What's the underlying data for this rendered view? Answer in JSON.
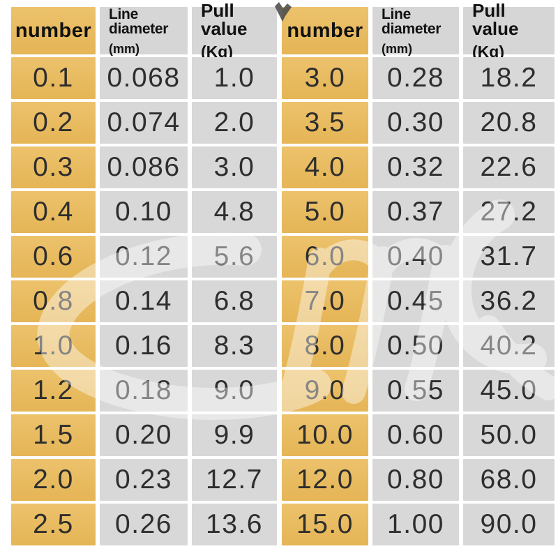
{
  "colors": {
    "background": "#ffffff",
    "gold_top": "#ecc26c",
    "gold_bottom": "#e5b556",
    "cell_gray": "#d8d8d8",
    "header_gray": "#d6d6d6",
    "text": "#2e2e2e",
    "header_text": "#111111",
    "watermark": "#ffffff",
    "artifact": "#4a4a4a"
  },
  "watermark_icon": "swoosh-logo-watermark",
  "chart_data": [
    {
      "type": "table",
      "columns": [
        "number",
        "Line diameter (mm)",
        "Pull value (Kg)"
      ],
      "header": {
        "number": "number",
        "diameter_label": "Line diameter",
        "diameter_unit": "(mm)",
        "pull_label": "Pull value",
        "pull_unit": "(Kg)"
      },
      "rows": [
        [
          "0.1",
          "0.068",
          "1.0"
        ],
        [
          "0.2",
          "0.074",
          "2.0"
        ],
        [
          "0.3",
          "0.086",
          "3.0"
        ],
        [
          "0.4",
          "0.10",
          "4.8"
        ],
        [
          "0.6",
          "0.12",
          "5.6"
        ],
        [
          "0.8",
          "0.14",
          "6.8"
        ],
        [
          "1.0",
          "0.16",
          "8.3"
        ],
        [
          "1.2",
          "0.18",
          "9.0"
        ],
        [
          "1.5",
          "0.20",
          "9.9"
        ],
        [
          "2.0",
          "0.23",
          "12.7"
        ],
        [
          "2.5",
          "0.26",
          "13.6"
        ]
      ]
    },
    {
      "type": "table",
      "columns": [
        "number",
        "Line diameter (mm)",
        "Pull value (Kg)"
      ],
      "header": {
        "number": "number",
        "diameter_label": "Line diameter",
        "diameter_unit": "(mm)",
        "pull_label": "Pull value",
        "pull_unit": "(Kg)"
      },
      "rows": [
        [
          "3.0",
          "0.28",
          "18.2"
        ],
        [
          "3.5",
          "0.30",
          "20.8"
        ],
        [
          "4.0",
          "0.32",
          "22.6"
        ],
        [
          "5.0",
          "0.37",
          "27.2"
        ],
        [
          "6.0",
          "0.40",
          "31.7"
        ],
        [
          "7.0",
          "0.45",
          "36.2"
        ],
        [
          "8.0",
          "0.50",
          "40.2"
        ],
        [
          "9.0",
          "0.55",
          "45.0"
        ],
        [
          "10.0",
          "0.60",
          "50.0"
        ],
        [
          "12.0",
          "0.80",
          "68.0"
        ],
        [
          "15.0",
          "1.00",
          "90.0"
        ]
      ]
    }
  ]
}
